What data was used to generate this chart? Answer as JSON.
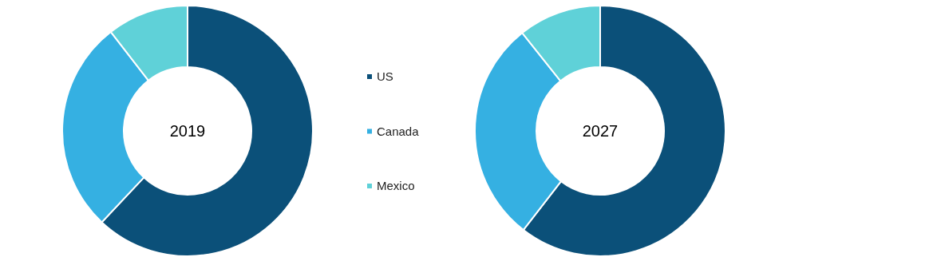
{
  "chart_data": [
    {
      "type": "donut",
      "title": "2019",
      "categories": [
        "US",
        "Canada",
        "Mexico"
      ],
      "values": [
        62,
        27.5,
        10.5
      ],
      "colors": [
        "#0b5079",
        "#35b0e2",
        "#5fd1d8"
      ],
      "legend": "right"
    },
    {
      "type": "donut",
      "title": "2027",
      "categories": [
        null,
        null,
        null
      ],
      "values": [
        60.5,
        28.8,
        10.7
      ],
      "colors": [
        "#0b5079",
        "#35b0e2",
        "#5fd1d8"
      ]
    }
  ]
}
